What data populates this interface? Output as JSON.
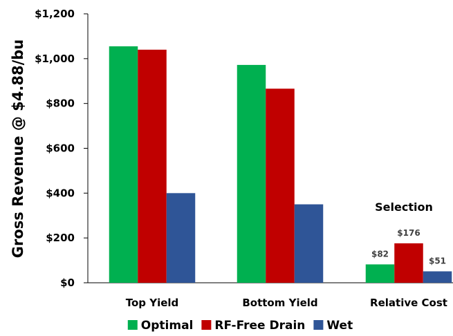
{
  "chart_data": {
    "type": "bar",
    "title": "",
    "xlabel": "",
    "ylabel": "Gross Revenue @ $4.88/bu",
    "ylim": [
      0,
      1200
    ],
    "yticks": [
      0,
      200,
      400,
      600,
      800,
      1000,
      1200
    ],
    "ytick_labels": [
      "$0",
      "$200",
      "$400",
      "$600",
      "$800",
      "$1,000",
      "$1,200"
    ],
    "categories": [
      "Top Yield",
      "Bottom Yield",
      "Relative Cost"
    ],
    "series": [
      {
        "name": "Optimal",
        "color": "#00b050",
        "values": [
          1055,
          972,
          82
        ]
      },
      {
        "name": "RF-Free Drain",
        "color": "#c00000",
        "values": [
          1040,
          866,
          176
        ]
      },
      {
        "name": "Wet",
        "color": "#2f5597",
        "values": [
          400,
          350,
          51
        ]
      }
    ],
    "data_labels": {
      "category": "Relative Cost",
      "labels": [
        "$82",
        "$176",
        "$51"
      ]
    },
    "annotation": "Selection",
    "grid": false,
    "legend_position": "bottom"
  }
}
